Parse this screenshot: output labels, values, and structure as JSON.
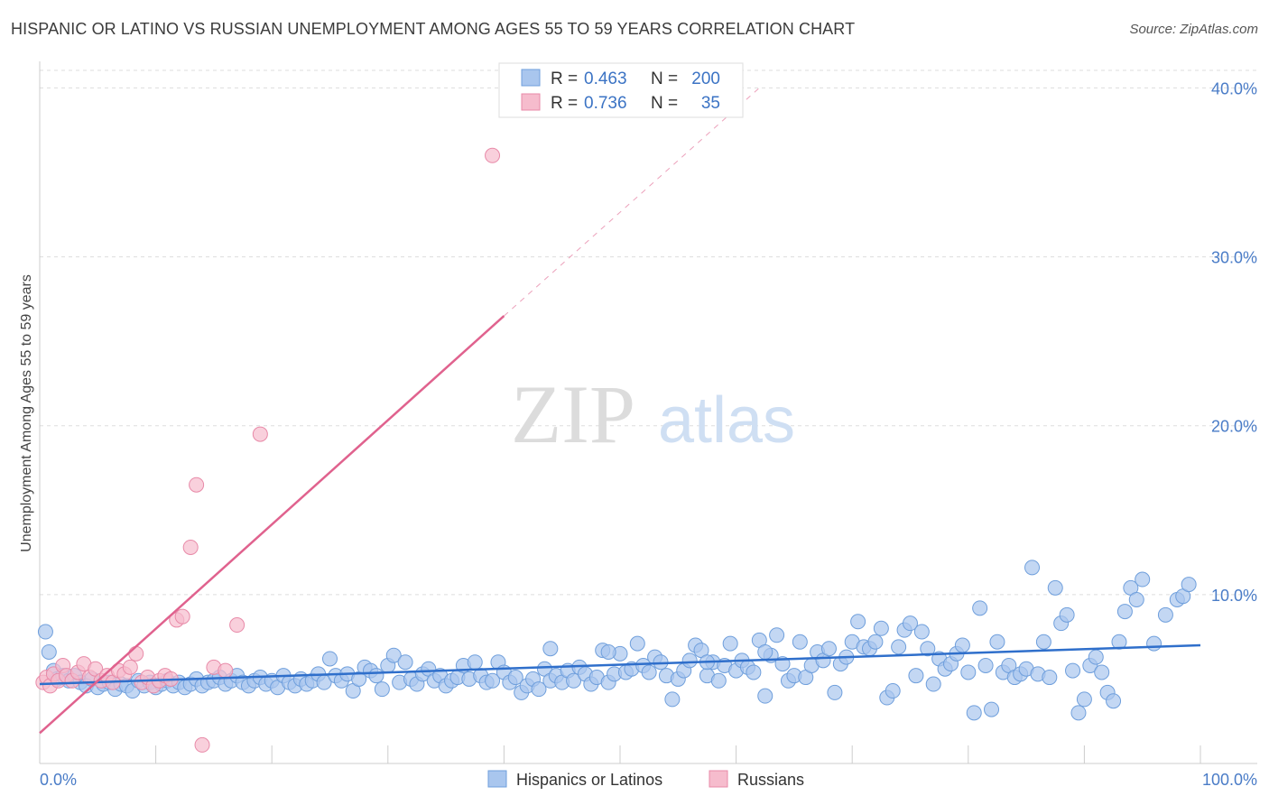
{
  "title": "HISPANIC OR LATINO VS RUSSIAN UNEMPLOYMENT AMONG AGES 55 TO 59 YEARS CORRELATION CHART",
  "source": "Source: ZipAtlas.com",
  "watermark": {
    "zip": "ZIP",
    "atlas": "atlas"
  },
  "colors": {
    "blue_fill": "#a9c6ee",
    "blue_stroke": "#6f9fdc",
    "blue_line": "#2f6fcb",
    "pink_fill": "#f6bccd",
    "pink_stroke": "#e88aa8",
    "pink_line": "#e0628e",
    "grid": "#dddddd",
    "tick_text": "#4a7cc7"
  },
  "legend": {
    "blue": {
      "r_label": "R = ",
      "r_value": "0.463",
      "n_label": "N = ",
      "n_value": "200"
    },
    "pink": {
      "r_label": "R = ",
      "r_value": "0.736",
      "n_label": "N = ",
      "n_value": "35"
    }
  },
  "chart_data": {
    "type": "scatter",
    "title": "HISPANIC OR LATINO VS RUSSIAN UNEMPLOYMENT AMONG AGES 55 TO 59 YEARS CORRELATION CHART",
    "xlabel": "",
    "ylabel": "Unemployment Among Ages 55 to 59 years",
    "xlim": [
      0,
      100
    ],
    "ylim": [
      0,
      42
    ],
    "x_tick_labels": [
      "0.0%",
      "100.0%"
    ],
    "y_ticks": [
      10,
      20,
      30,
      40
    ],
    "y_tick_labels": [
      "10.0%",
      "20.0%",
      "30.0%",
      "40.0%"
    ],
    "grid": true,
    "legend_position": "top-center",
    "series": [
      {
        "name": "Hispanics or Latinos",
        "color": "#a9c6ee",
        "trend": {
          "x0": 0,
          "y0": 4.7,
          "x1": 100,
          "y1": 7.0
        },
        "points": [
          [
            0.5,
            7.8
          ],
          [
            0.8,
            6.6
          ],
          [
            1.2,
            5.5
          ],
          [
            1.5,
            5.0
          ],
          [
            2.0,
            5.2
          ],
          [
            2.5,
            4.9
          ],
          [
            3.0,
            5.2
          ],
          [
            3.5,
            4.8
          ],
          [
            4.0,
            4.6
          ],
          [
            4.5,
            5.0
          ],
          [
            5.0,
            4.5
          ],
          [
            5.5,
            4.7
          ],
          [
            6.0,
            4.8
          ],
          [
            6.5,
            4.4
          ],
          [
            7.0,
            4.7
          ],
          [
            7.5,
            4.6
          ],
          [
            8.0,
            4.3
          ],
          [
            8.5,
            4.9
          ],
          [
            9.0,
            4.6
          ],
          [
            9.5,
            4.8
          ],
          [
            10.0,
            4.5
          ],
          [
            10.5,
            4.7
          ],
          [
            11.0,
            4.9
          ],
          [
            11.5,
            4.6
          ],
          [
            12.0,
            4.8
          ],
          [
            12.5,
            4.5
          ],
          [
            13.0,
            4.7
          ],
          [
            13.5,
            5.0
          ],
          [
            14.0,
            4.6
          ],
          [
            14.5,
            4.8
          ],
          [
            15.0,
            4.9
          ],
          [
            15.5,
            5.1
          ],
          [
            16.0,
            4.7
          ],
          [
            16.5,
            4.9
          ],
          [
            17.0,
            5.2
          ],
          [
            17.5,
            4.8
          ],
          [
            18.0,
            4.6
          ],
          [
            18.5,
            4.9
          ],
          [
            19.0,
            5.1
          ],
          [
            19.5,
            4.7
          ],
          [
            20.0,
            4.9
          ],
          [
            20.5,
            4.5
          ],
          [
            21.0,
            5.2
          ],
          [
            21.5,
            4.8
          ],
          [
            22.0,
            4.6
          ],
          [
            22.5,
            5.0
          ],
          [
            23.0,
            4.7
          ],
          [
            23.5,
            4.9
          ],
          [
            24.0,
            5.3
          ],
          [
            24.5,
            4.8
          ],
          [
            25.0,
            6.2
          ],
          [
            25.5,
            5.2
          ],
          [
            26.0,
            4.9
          ],
          [
            26.5,
            5.3
          ],
          [
            27.0,
            4.3
          ],
          [
            27.5,
            5.0
          ],
          [
            28.0,
            5.7
          ],
          [
            28.5,
            5.5
          ],
          [
            29.0,
            5.2
          ],
          [
            29.5,
            4.4
          ],
          [
            30.0,
            5.8
          ],
          [
            30.5,
            6.4
          ],
          [
            31.0,
            4.8
          ],
          [
            31.5,
            6.0
          ],
          [
            32.0,
            5.0
          ],
          [
            32.5,
            4.7
          ],
          [
            33.0,
            5.3
          ],
          [
            33.5,
            5.6
          ],
          [
            34.0,
            4.9
          ],
          [
            34.5,
            5.2
          ],
          [
            35.0,
            4.6
          ],
          [
            35.5,
            4.9
          ],
          [
            36.0,
            5.1
          ],
          [
            36.5,
            5.8
          ],
          [
            37.0,
            5.0
          ],
          [
            37.5,
            6.0
          ],
          [
            38.0,
            5.2
          ],
          [
            38.5,
            4.8
          ],
          [
            39.0,
            4.9
          ],
          [
            39.5,
            6.0
          ],
          [
            40.0,
            5.4
          ],
          [
            40.5,
            4.8
          ],
          [
            41.0,
            5.1
          ],
          [
            41.5,
            4.2
          ],
          [
            42.0,
            4.6
          ],
          [
            42.5,
            5.0
          ],
          [
            43.0,
            4.4
          ],
          [
            43.5,
            5.6
          ],
          [
            44.0,
            4.9
          ],
          [
            44.5,
            5.2
          ],
          [
            45.0,
            4.8
          ],
          [
            45.5,
            5.5
          ],
          [
            46.0,
            4.9
          ],
          [
            46.5,
            5.7
          ],
          [
            47.0,
            5.3
          ],
          [
            47.5,
            4.7
          ],
          [
            48.0,
            5.1
          ],
          [
            48.5,
            6.7
          ],
          [
            49.0,
            4.8
          ],
          [
            49.5,
            5.3
          ],
          [
            50.0,
            6.5
          ],
          [
            50.5,
            5.4
          ],
          [
            51.0,
            5.6
          ],
          [
            51.5,
            7.1
          ],
          [
            52.0,
            5.8
          ],
          [
            52.5,
            5.4
          ],
          [
            53.0,
            6.3
          ],
          [
            53.5,
            6.0
          ],
          [
            54.0,
            5.2
          ],
          [
            54.5,
            3.8
          ],
          [
            55.0,
            5.0
          ],
          [
            55.5,
            5.5
          ],
          [
            56.0,
            6.1
          ],
          [
            56.5,
            7.0
          ],
          [
            57.0,
            6.7
          ],
          [
            57.5,
            5.2
          ],
          [
            58.0,
            6.0
          ],
          [
            58.5,
            4.9
          ],
          [
            59.0,
            5.8
          ],
          [
            59.5,
            7.1
          ],
          [
            60.0,
            5.5
          ],
          [
            60.5,
            6.1
          ],
          [
            61.0,
            5.7
          ],
          [
            61.5,
            5.4
          ],
          [
            62.0,
            7.3
          ],
          [
            62.5,
            4.0
          ],
          [
            63.0,
            6.4
          ],
          [
            63.5,
            7.6
          ],
          [
            64.0,
            5.9
          ],
          [
            64.5,
            4.9
          ],
          [
            65.0,
            5.2
          ],
          [
            65.5,
            7.2
          ],
          [
            66.0,
            5.1
          ],
          [
            66.5,
            5.8
          ],
          [
            67.0,
            6.6
          ],
          [
            67.5,
            6.1
          ],
          [
            68.0,
            6.8
          ],
          [
            68.5,
            4.2
          ],
          [
            69.0,
            5.9
          ],
          [
            69.5,
            6.3
          ],
          [
            70.0,
            7.2
          ],
          [
            70.5,
            8.4
          ],
          [
            71.0,
            6.9
          ],
          [
            71.5,
            6.8
          ],
          [
            72.0,
            7.2
          ],
          [
            72.5,
            8.0
          ],
          [
            73.0,
            3.9
          ],
          [
            73.5,
            4.3
          ],
          [
            74.0,
            6.9
          ],
          [
            74.5,
            7.9
          ],
          [
            75.0,
            8.3
          ],
          [
            75.5,
            5.2
          ],
          [
            76.0,
            7.8
          ],
          [
            76.5,
            6.8
          ],
          [
            77.0,
            4.7
          ],
          [
            77.5,
            6.2
          ],
          [
            78.0,
            5.6
          ],
          [
            78.5,
            5.9
          ],
          [
            79.0,
            6.5
          ],
          [
            79.5,
            7.0
          ],
          [
            80.0,
            5.4
          ],
          [
            80.5,
            3.0
          ],
          [
            81.0,
            9.2
          ],
          [
            81.5,
            5.8
          ],
          [
            82.0,
            3.2
          ],
          [
            82.5,
            7.2
          ],
          [
            83.0,
            5.4
          ],
          [
            83.5,
            5.8
          ],
          [
            84.0,
            5.1
          ],
          [
            84.5,
            5.3
          ],
          [
            85.0,
            5.6
          ],
          [
            85.5,
            11.6
          ],
          [
            86.0,
            5.3
          ],
          [
            86.5,
            7.2
          ],
          [
            87.0,
            5.1
          ],
          [
            87.5,
            10.4
          ],
          [
            88.0,
            8.3
          ],
          [
            88.5,
            8.8
          ],
          [
            89.0,
            5.5
          ],
          [
            89.5,
            3.0
          ],
          [
            90.0,
            3.8
          ],
          [
            90.5,
            5.8
          ],
          [
            91.0,
            6.3
          ],
          [
            91.5,
            5.4
          ],
          [
            92.0,
            4.2
          ],
          [
            92.5,
            3.7
          ],
          [
            93.0,
            7.2
          ],
          [
            93.5,
            9.0
          ],
          [
            94.0,
            10.4
          ],
          [
            94.5,
            9.7
          ],
          [
            95.0,
            10.9
          ],
          [
            96.0,
            7.1
          ],
          [
            97.0,
            8.8
          ],
          [
            98.0,
            9.7
          ],
          [
            98.5,
            9.9
          ],
          [
            99.0,
            10.6
          ],
          [
            44.0,
            6.8
          ],
          [
            49.0,
            6.6
          ],
          [
            57.5,
            6.0
          ],
          [
            62.5,
            6.6
          ]
        ]
      },
      {
        "name": "Russians",
        "color": "#f6bccd",
        "trend": {
          "x0": 0,
          "y0": 1.8,
          "x1": 40,
          "y1": 26.5
        },
        "trend_dashed_to": {
          "x": 62,
          "y": 40.0
        },
        "points": [
          [
            0.3,
            4.8
          ],
          [
            0.6,
            5.1
          ],
          [
            0.9,
            4.6
          ],
          [
            1.2,
            5.3
          ],
          [
            1.6,
            4.9
          ],
          [
            2.0,
            5.8
          ],
          [
            2.3,
            5.2
          ],
          [
            2.8,
            4.9
          ],
          [
            3.3,
            5.4
          ],
          [
            3.8,
            5.9
          ],
          [
            4.3,
            5.1
          ],
          [
            4.8,
            5.6
          ],
          [
            5.3,
            4.9
          ],
          [
            5.8,
            5.2
          ],
          [
            6.3,
            4.8
          ],
          [
            6.8,
            5.5
          ],
          [
            7.3,
            5.3
          ],
          [
            7.8,
            5.7
          ],
          [
            8.3,
            6.5
          ],
          [
            8.8,
            4.8
          ],
          [
            9.3,
            5.1
          ],
          [
            9.8,
            4.6
          ],
          [
            10.3,
            4.9
          ],
          [
            10.8,
            5.2
          ],
          [
            11.3,
            5.0
          ],
          [
            11.8,
            8.5
          ],
          [
            12.3,
            8.7
          ],
          [
            13.0,
            12.8
          ],
          [
            13.5,
            16.5
          ],
          [
            14.0,
            1.1
          ],
          [
            15.0,
            5.7
          ],
          [
            16.0,
            5.5
          ],
          [
            17.0,
            8.2
          ],
          [
            19.0,
            19.5
          ],
          [
            39.0,
            36.0
          ]
        ]
      }
    ]
  },
  "bottom_legend": {
    "blue_label": "Hispanics or Latinos",
    "pink_label": "Russians"
  }
}
